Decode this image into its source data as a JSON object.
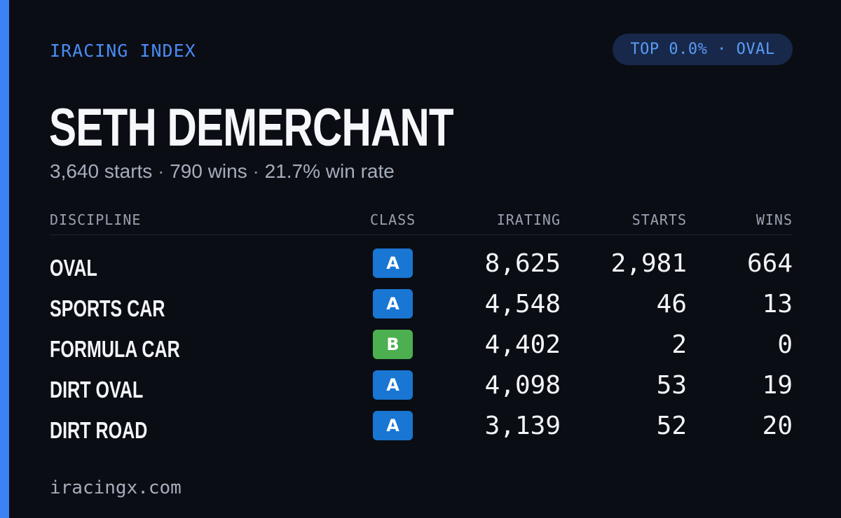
{
  "brand": "IRACING INDEX",
  "rank_badge": "TOP 0.0% · OVAL",
  "driver": {
    "name": "SETH DEMERCHANT",
    "starts": "3,640 starts",
    "wins": "790 wins",
    "win_rate": "21.7% win rate",
    "separator": "·"
  },
  "table": {
    "headers": {
      "discipline": "DISCIPLINE",
      "class": "CLASS",
      "irating": "IRATING",
      "starts": "STARTS",
      "wins": "WINS"
    },
    "rows": [
      {
        "discipline": "OVAL",
        "class": "A",
        "class_color": "#1976d2",
        "irating": "8,625",
        "starts": "2,981",
        "wins": "664"
      },
      {
        "discipline": "SPORTS CAR",
        "class": "A",
        "class_color": "#1976d2",
        "irating": "4,548",
        "starts": "46",
        "wins": "13"
      },
      {
        "discipline": "FORMULA CAR",
        "class": "B",
        "class_color": "#4caf50",
        "irating": "4,402",
        "starts": "2",
        "wins": "0"
      },
      {
        "discipline": "DIRT OVAL",
        "class": "A",
        "class_color": "#1976d2",
        "irating": "4,098",
        "starts": "53",
        "wins": "19"
      },
      {
        "discipline": "DIRT ROAD",
        "class": "A",
        "class_color": "#1976d2",
        "irating": "3,139",
        "starts": "52",
        "wins": "20"
      }
    ]
  },
  "footer": "iracingx.com",
  "colors": {
    "accent": "#3b82f6",
    "background": "#0a0d14",
    "pill_background": "#17284a"
  }
}
